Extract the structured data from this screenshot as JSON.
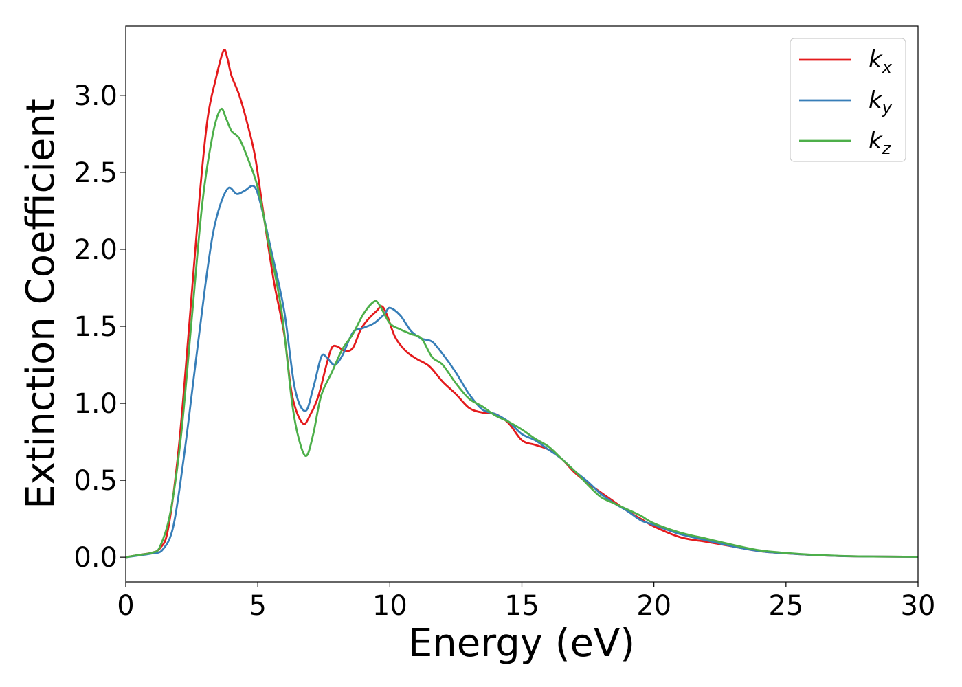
{
  "chart_data": {
    "type": "line",
    "xlabel": "Energy (eV)",
    "ylabel": "Extinction Coefficient",
    "xlim": [
      0,
      30
    ],
    "ylim": [
      -0.16,
      3.45
    ],
    "xticks": [
      "0",
      "5",
      "10",
      "15",
      "20",
      "25",
      "30"
    ],
    "yticks": [
      "0.0",
      "0.5",
      "1.0",
      "1.5",
      "2.0",
      "2.5",
      "3.0"
    ],
    "grid": false,
    "legend_position": "top-right",
    "series": [
      {
        "name": "k",
        "subscript": "x",
        "color": "#e41a1c",
        "points": [
          [
            0,
            0.0
          ],
          [
            0.5,
            0.015
          ],
          [
            1.0,
            0.03
          ],
          [
            1.3,
            0.06
          ],
          [
            1.6,
            0.18
          ],
          [
            2.0,
            0.7
          ],
          [
            2.4,
            1.5
          ],
          [
            2.8,
            2.35
          ],
          [
            3.1,
            2.85
          ],
          [
            3.4,
            3.1
          ],
          [
            3.7,
            3.29
          ],
          [
            3.85,
            3.24
          ],
          [
            4.0,
            3.13
          ],
          [
            4.3,
            3.0
          ],
          [
            4.6,
            2.82
          ],
          [
            4.9,
            2.6
          ],
          [
            5.2,
            2.25
          ],
          [
            5.6,
            1.8
          ],
          [
            6.0,
            1.45
          ],
          [
            6.3,
            1.05
          ],
          [
            6.7,
            0.87
          ],
          [
            7.0,
            0.93
          ],
          [
            7.3,
            1.05
          ],
          [
            7.6,
            1.25
          ],
          [
            7.8,
            1.36
          ],
          [
            8.0,
            1.37
          ],
          [
            8.3,
            1.34
          ],
          [
            8.6,
            1.36
          ],
          [
            8.9,
            1.48
          ],
          [
            9.2,
            1.55
          ],
          [
            9.5,
            1.6
          ],
          [
            9.7,
            1.63
          ],
          [
            9.9,
            1.57
          ],
          [
            10.2,
            1.43
          ],
          [
            10.6,
            1.34
          ],
          [
            11.0,
            1.29
          ],
          [
            11.5,
            1.24
          ],
          [
            12.0,
            1.14
          ],
          [
            12.5,
            1.06
          ],
          [
            13.0,
            0.97
          ],
          [
            13.5,
            0.94
          ],
          [
            14.0,
            0.93
          ],
          [
            14.5,
            0.87
          ],
          [
            15.0,
            0.76
          ],
          [
            15.5,
            0.73
          ],
          [
            16.0,
            0.7
          ],
          [
            16.5,
            0.64
          ],
          [
            17.0,
            0.55
          ],
          [
            17.5,
            0.48
          ],
          [
            18.0,
            0.42
          ],
          [
            18.5,
            0.36
          ],
          [
            19.0,
            0.3
          ],
          [
            19.5,
            0.25
          ],
          [
            20.0,
            0.2
          ],
          [
            21.0,
            0.13
          ],
          [
            22.0,
            0.1
          ],
          [
            23.0,
            0.07
          ],
          [
            24.0,
            0.04
          ],
          [
            25.0,
            0.025
          ],
          [
            26.0,
            0.015
          ],
          [
            27.0,
            0.008
          ],
          [
            28.0,
            0.005
          ],
          [
            30.0,
            0.003
          ]
        ]
      },
      {
        "name": "k",
        "subscript": "y",
        "color": "#377eb8",
        "points": [
          [
            0,
            0.0
          ],
          [
            0.5,
            0.012
          ],
          [
            1.0,
            0.025
          ],
          [
            1.4,
            0.05
          ],
          [
            1.8,
            0.2
          ],
          [
            2.2,
            0.65
          ],
          [
            2.6,
            1.2
          ],
          [
            3.0,
            1.75
          ],
          [
            3.3,
            2.1
          ],
          [
            3.6,
            2.3
          ],
          [
            3.9,
            2.4
          ],
          [
            4.2,
            2.36
          ],
          [
            4.5,
            2.38
          ],
          [
            4.85,
            2.41
          ],
          [
            5.1,
            2.3
          ],
          [
            5.5,
            2.0
          ],
          [
            6.0,
            1.6
          ],
          [
            6.4,
            1.1
          ],
          [
            6.8,
            0.95
          ],
          [
            7.1,
            1.1
          ],
          [
            7.4,
            1.3
          ],
          [
            7.6,
            1.3
          ],
          [
            7.9,
            1.25
          ],
          [
            8.2,
            1.31
          ],
          [
            8.6,
            1.46
          ],
          [
            9.0,
            1.49
          ],
          [
            9.4,
            1.52
          ],
          [
            9.8,
            1.58
          ],
          [
            10.0,
            1.62
          ],
          [
            10.4,
            1.57
          ],
          [
            10.8,
            1.47
          ],
          [
            11.2,
            1.42
          ],
          [
            11.6,
            1.4
          ],
          [
            12.0,
            1.32
          ],
          [
            12.5,
            1.2
          ],
          [
            13.0,
            1.06
          ],
          [
            13.5,
            0.96
          ],
          [
            14.0,
            0.93
          ],
          [
            14.5,
            0.88
          ],
          [
            15.0,
            0.8
          ],
          [
            15.5,
            0.76
          ],
          [
            16.0,
            0.7
          ],
          [
            16.5,
            0.64
          ],
          [
            17.0,
            0.56
          ],
          [
            17.5,
            0.49
          ],
          [
            18.0,
            0.41
          ],
          [
            18.5,
            0.35
          ],
          [
            19.0,
            0.3
          ],
          [
            19.5,
            0.24
          ],
          [
            20.0,
            0.21
          ],
          [
            21.0,
            0.15
          ],
          [
            22.0,
            0.11
          ],
          [
            23.0,
            0.07
          ],
          [
            24.0,
            0.04
          ],
          [
            25.0,
            0.025
          ],
          [
            26.0,
            0.015
          ],
          [
            27.0,
            0.008
          ],
          [
            28.0,
            0.005
          ],
          [
            30.0,
            0.003
          ]
        ]
      },
      {
        "name": "k",
        "subscript": "z",
        "color": "#4daf4a",
        "points": [
          [
            0,
            0.0
          ],
          [
            0.5,
            0.015
          ],
          [
            1.0,
            0.03
          ],
          [
            1.3,
            0.07
          ],
          [
            1.7,
            0.3
          ],
          [
            2.1,
            0.8
          ],
          [
            2.5,
            1.55
          ],
          [
            2.9,
            2.3
          ],
          [
            3.3,
            2.75
          ],
          [
            3.6,
            2.91
          ],
          [
            3.8,
            2.85
          ],
          [
            4.0,
            2.77
          ],
          [
            4.3,
            2.72
          ],
          [
            4.6,
            2.6
          ],
          [
            5.0,
            2.4
          ],
          [
            5.4,
            2.05
          ],
          [
            5.9,
            1.6
          ],
          [
            6.3,
            1.0
          ],
          [
            6.6,
            0.74
          ],
          [
            6.85,
            0.66
          ],
          [
            7.1,
            0.8
          ],
          [
            7.4,
            1.05
          ],
          [
            7.8,
            1.2
          ],
          [
            8.2,
            1.35
          ],
          [
            8.6,
            1.45
          ],
          [
            9.0,
            1.58
          ],
          [
            9.4,
            1.66
          ],
          [
            9.6,
            1.64
          ],
          [
            10.0,
            1.52
          ],
          [
            10.4,
            1.48
          ],
          [
            10.8,
            1.45
          ],
          [
            11.2,
            1.42
          ],
          [
            11.6,
            1.3
          ],
          [
            12.0,
            1.25
          ],
          [
            12.5,
            1.13
          ],
          [
            13.0,
            1.03
          ],
          [
            13.5,
            0.98
          ],
          [
            14.0,
            0.92
          ],
          [
            14.5,
            0.88
          ],
          [
            15.0,
            0.83
          ],
          [
            15.5,
            0.77
          ],
          [
            16.0,
            0.72
          ],
          [
            16.5,
            0.64
          ],
          [
            17.0,
            0.56
          ],
          [
            17.5,
            0.47
          ],
          [
            18.0,
            0.39
          ],
          [
            18.5,
            0.35
          ],
          [
            19.0,
            0.31
          ],
          [
            19.5,
            0.27
          ],
          [
            20.0,
            0.22
          ],
          [
            21.0,
            0.16
          ],
          [
            22.0,
            0.12
          ],
          [
            23.0,
            0.08
          ],
          [
            24.0,
            0.045
          ],
          [
            25.0,
            0.028
          ],
          [
            26.0,
            0.016
          ],
          [
            27.0,
            0.009
          ],
          [
            28.0,
            0.005
          ],
          [
            30.0,
            0.003
          ]
        ]
      }
    ]
  }
}
